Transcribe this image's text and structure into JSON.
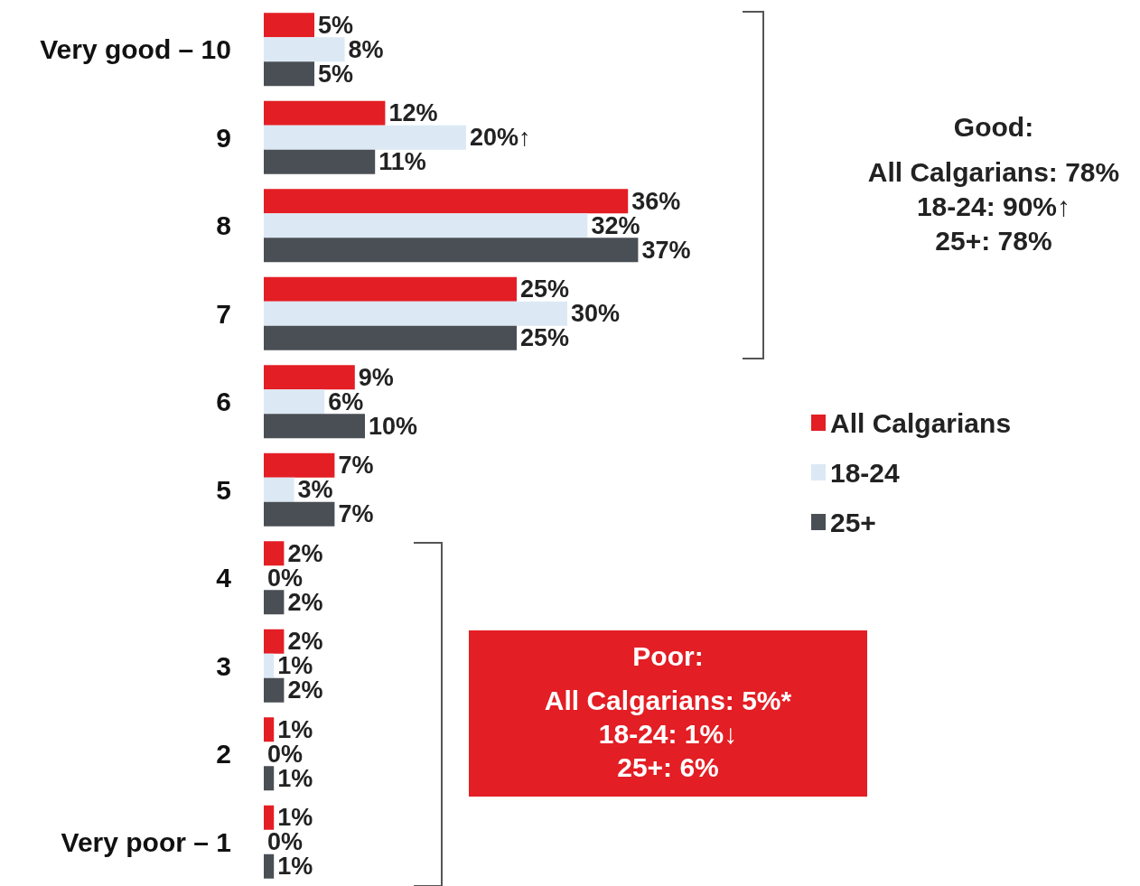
{
  "chart_data": {
    "type": "bar",
    "orientation": "horizontal",
    "categories": [
      "Very good – 10",
      "9",
      "8",
      "7",
      "6",
      "5",
      "4",
      "3",
      "2",
      "Very poor – 1"
    ],
    "series": [
      {
        "name": "All Calgarians",
        "color": "#e31e24",
        "values": [
          5,
          12,
          36,
          25,
          9,
          7,
          2,
          2,
          1,
          1
        ],
        "value_labels": [
          "5%",
          "12%",
          "36%",
          "25%",
          "9%",
          "7%",
          "2%",
          "2%",
          "1%",
          "1%"
        ]
      },
      {
        "name": "18-24",
        "color": "#dce9f5",
        "values": [
          8,
          20,
          32,
          30,
          6,
          3,
          0,
          1,
          0,
          0
        ],
        "value_labels": [
          "8%",
          "20%↑",
          "32%",
          "30%",
          "6%",
          "3%",
          "0%",
          "1%",
          "0%",
          "0%"
        ]
      },
      {
        "name": "25+",
        "color": "#4a4f56",
        "values": [
          5,
          11,
          37,
          25,
          10,
          7,
          2,
          2,
          1,
          1
        ],
        "value_labels": [
          "5%",
          "11%",
          "37%",
          "25%",
          "10%",
          "7%",
          "2%",
          "2%",
          "1%",
          "1%"
        ]
      }
    ],
    "legend": "right",
    "annotations": [
      "Good:",
      "All Calgarians: 78%",
      "18-24: 90%↑",
      "25+: 78%",
      "Poor:",
      "All Calgarians: 5%*",
      "18-24: 1%↓",
      "25+: 6%"
    ]
  }
}
